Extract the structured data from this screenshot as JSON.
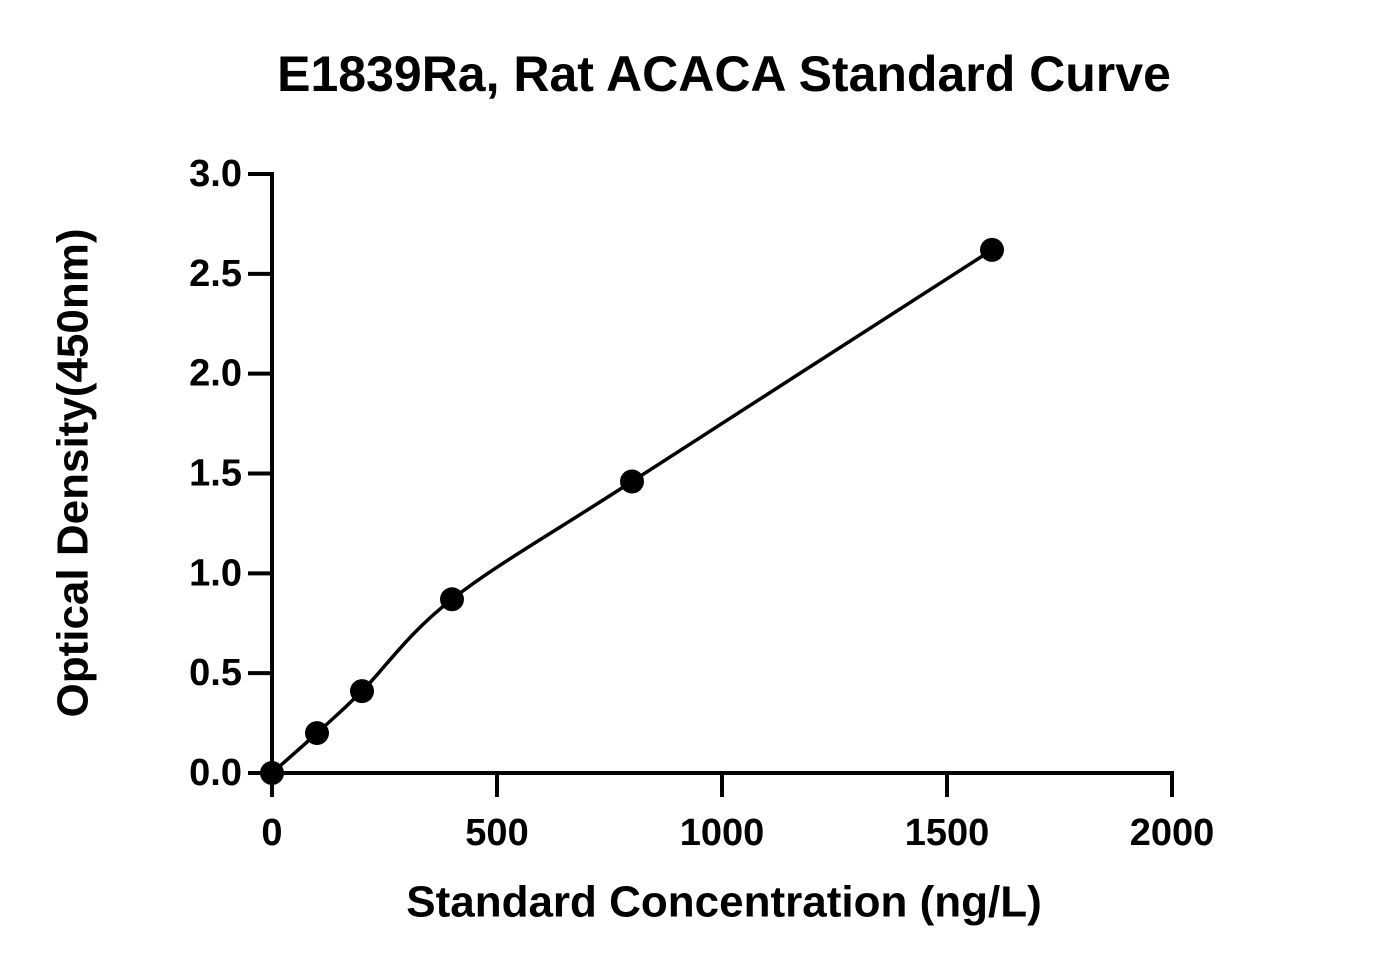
{
  "chart_data": {
    "type": "scatter",
    "title": "E1839Ra, Rat ACACA Standard Curve",
    "x_label": "Standard Concentration (ng/L)",
    "y_label": "Optical Density(450nm)",
    "x": [
      0,
      100,
      200,
      400,
      800,
      1600
    ],
    "values": [
      0.0,
      0.2,
      0.41,
      0.87,
      1.46,
      2.62
    ],
    "color": "#000000",
    "line": true,
    "xlim": [
      0,
      2000
    ],
    "xticks": [
      0,
      500,
      1000,
      1500,
      2000
    ],
    "ylim": [
      0,
      3
    ],
    "yticks": [
      {
        "value": 0,
        "label": "0.0"
      },
      {
        "value": 0.5,
        "label": "0.5"
      },
      {
        "value": 1,
        "label": "1.0"
      },
      {
        "value": 1.5,
        "label": "1.5"
      },
      {
        "value": 2,
        "label": "2.0"
      },
      {
        "value": 2.5,
        "label": "2.5"
      },
      {
        "value": 3,
        "label": "3.0"
      }
    ],
    "grid": false
  }
}
